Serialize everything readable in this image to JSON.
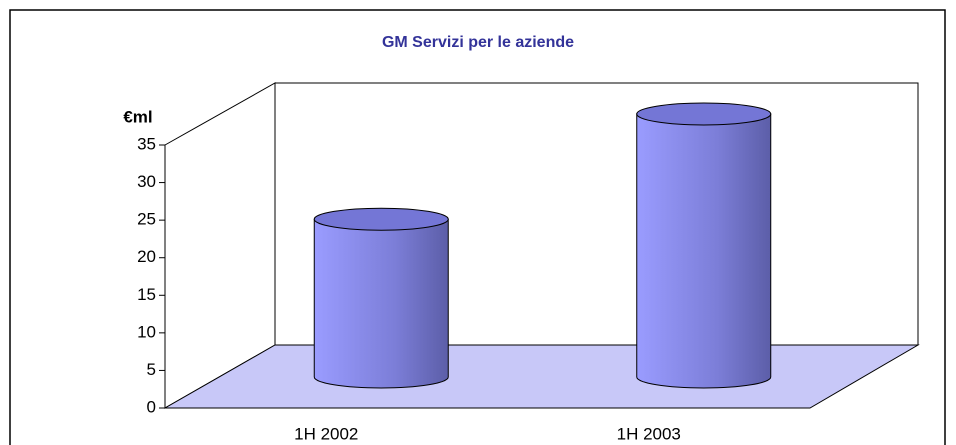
{
  "chart_data": {
    "type": "bar",
    "title": "GM Servizi per le aziende",
    "y_label": "€ml",
    "categories": [
      "1H 2002",
      "1H 2003"
    ],
    "values": [
      21,
      35
    ],
    "color": "#9999ff",
    "ylim": [
      0,
      35
    ],
    "yticks": [
      0,
      5,
      10,
      15,
      20,
      25,
      30,
      35
    ]
  }
}
